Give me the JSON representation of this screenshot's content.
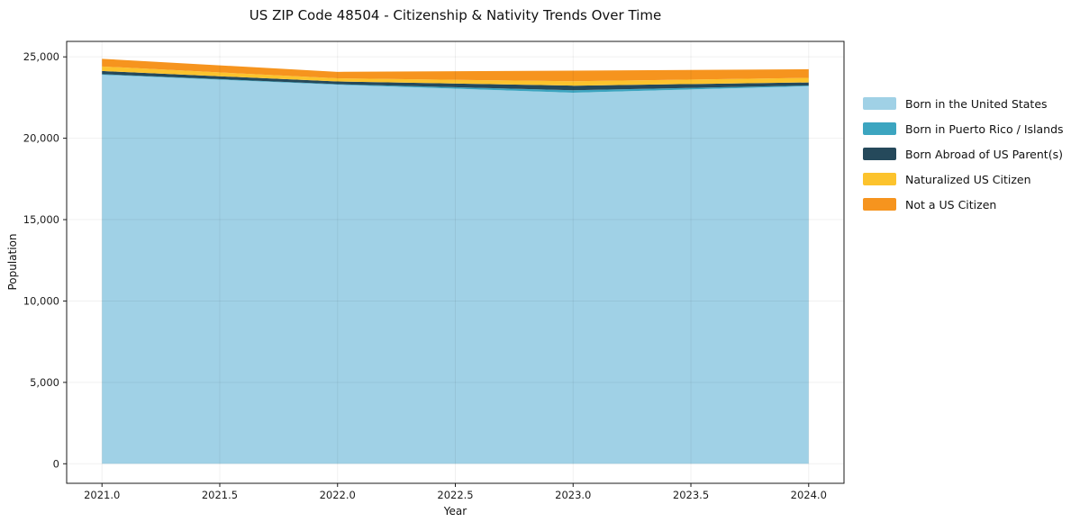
{
  "chart_data": {
    "type": "area",
    "stacked": true,
    "title": "US ZIP Code 48504 - Citizenship & Nativity Trends Over Time",
    "xlabel": "Year",
    "ylabel": "Population",
    "x": [
      2021,
      2022,
      2023,
      2024
    ],
    "series": [
      {
        "name": "Born in the United States",
        "color": "#A0D1E6",
        "values": [
          23900,
          23290,
          22800,
          23200
        ]
      },
      {
        "name": "Born in Puerto Rico / Islands",
        "color": "#3CA5C0",
        "values": [
          40,
          30,
          150,
          40
        ]
      },
      {
        "name": "Born Abroad of US Parent(s)",
        "color": "#25495B",
        "values": [
          190,
          170,
          280,
          190
        ]
      },
      {
        "name": "Naturalized US Citizen",
        "color": "#FCC32D",
        "values": [
          280,
          190,
          270,
          280
        ]
      },
      {
        "name": "Not a US Citizen",
        "color": "#F6941E",
        "values": [
          470,
          400,
          650,
          530
        ]
      }
    ],
    "xlim": [
      2020.85,
      2024.15
    ],
    "ylim": [
      -1200,
      25950
    ],
    "xticks": {
      "values": [
        2021.0,
        2021.5,
        2022.0,
        2022.5,
        2023.0,
        2023.5,
        2024.0
      ],
      "labels": [
        "2021.0",
        "2021.5",
        "2022.0",
        "2022.5",
        "2023.0",
        "2023.5",
        "2024.0"
      ]
    },
    "yticks": {
      "values": [
        0,
        5000,
        10000,
        15000,
        20000,
        25000
      ],
      "labels": [
        "0",
        "5,000",
        "10,000",
        "15,000",
        "20,000",
        "25,000"
      ]
    },
    "grid": true,
    "legend_position": "right-outside",
    "colors": {
      "spine": "#1a1a1a",
      "grid": "rgba(0,0,0,0.06)",
      "tick_text": "#1c1c1c"
    }
  }
}
